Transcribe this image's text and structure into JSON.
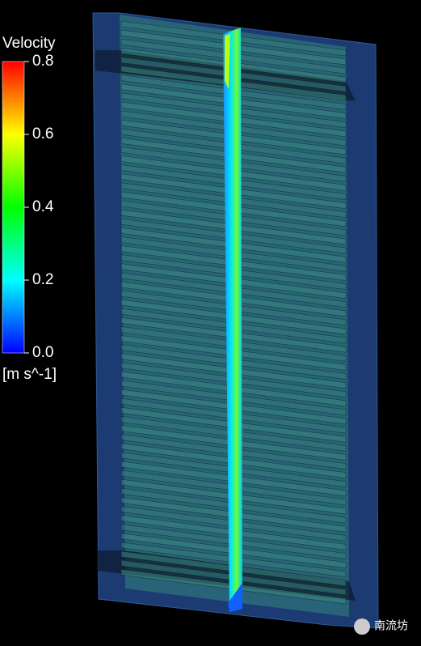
{
  "colorbar": {
    "title": "Velocity",
    "unit": "[m s^-1]",
    "range": [
      0,
      0.8
    ],
    "ticks": [
      {
        "value": 0,
        "label": "0.0"
      },
      0.2,
      0.4,
      0.6,
      0.8
    ]
  },
  "watermark": "南流坊"
}
